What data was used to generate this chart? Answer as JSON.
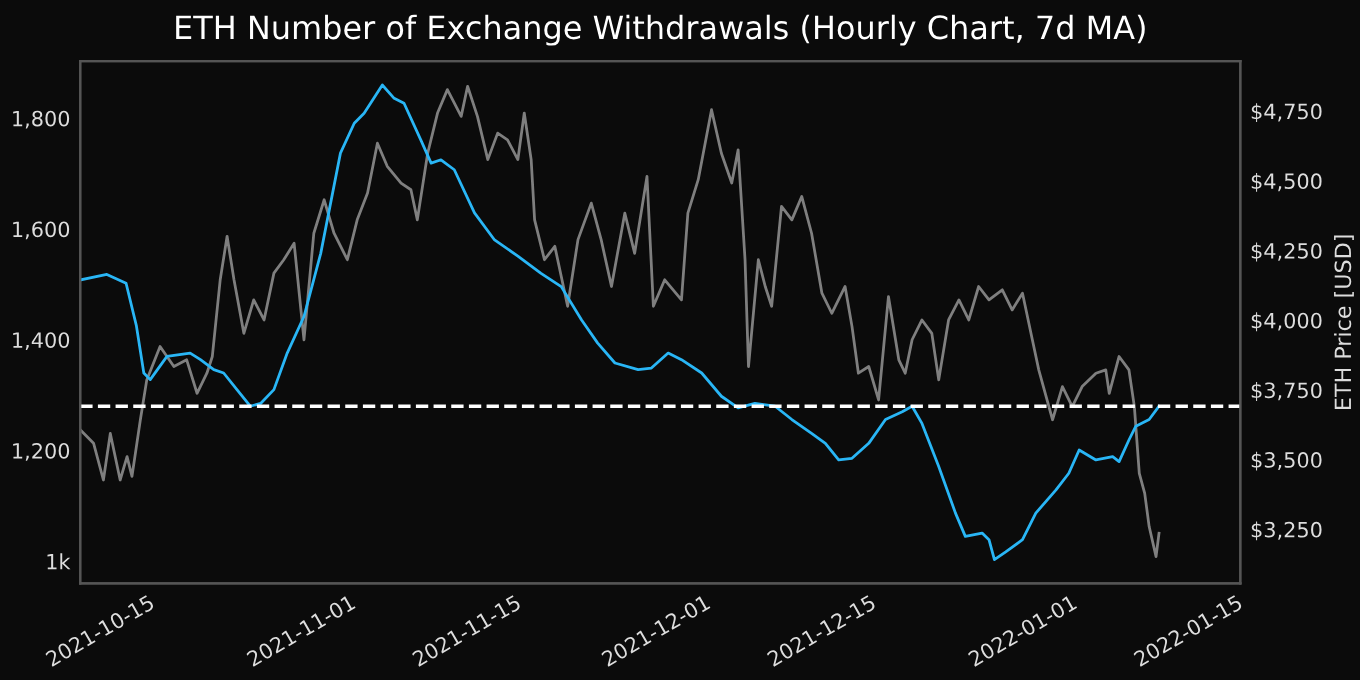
{
  "chart_data": {
    "type": "line",
    "title": "ETH Number of Exchange Withdrawals (Hourly Chart, 7d MA)",
    "y2label": "ETH Price [USD]",
    "xlim": [
      "2021-10-09T06:00",
      "2022-01-15T08:00"
    ],
    "xticks": [
      "2021-10-15",
      "2021-11-01",
      "2021-11-15",
      "2021-12-01",
      "2021-12-15",
      "2022-01-01",
      "2022-01-15"
    ],
    "ylim": [
      960,
      1903
    ],
    "yticks": [
      {
        "value": 1000,
        "label": "1k"
      },
      {
        "value": 1200,
        "label": "1,200"
      },
      {
        "value": 1400,
        "label": "1,400"
      },
      {
        "value": 1600,
        "label": "1,600"
      },
      {
        "value": 1800,
        "label": "1,800"
      }
    ],
    "y2lim": [
      3056,
      4929
    ],
    "y2ticks": [
      {
        "value": 3250,
        "label": "$3,250"
      },
      {
        "value": 3500,
        "label": "$3,500"
      },
      {
        "value": 3750,
        "label": "$3,750"
      },
      {
        "value": 4000,
        "label": "$4,000"
      },
      {
        "value": 4250,
        "label": "$4,250"
      },
      {
        "value": 4500,
        "label": "$4,500"
      },
      {
        "value": 4750,
        "label": "$4,750"
      }
    ],
    "grid": false,
    "legend": false,
    "marker": "none",
    "line_style": "solid",
    "ref_lines": [
      {
        "axis": "y",
        "value": 1280,
        "color": "#ffffff",
        "line_style": "dashed"
      }
    ],
    "series": [
      {
        "color": "#7f7f7f",
        "axis": "y2",
        "x": [
          "2021-10-09T06:00",
          "2021-10-10T09:00",
          "2021-10-11T05:00",
          "2021-10-11T19:00",
          "2021-10-12T15:00",
          "2021-10-13T05:00",
          "2021-10-13T15:00",
          "2021-10-14T08:00",
          "2021-10-14T21:00",
          "2021-10-16T00:00",
          "2021-10-17T04:00",
          "2021-10-18T06:00",
          "2021-10-19T03:00",
          "2021-10-19T23:00",
          "2021-10-20T10:00",
          "2021-10-21T02:00",
          "2021-10-21T16:00",
          "2021-10-22T06:00",
          "2021-10-23T02:00",
          "2021-10-23T22:00",
          "2021-10-24T19:00",
          "2021-10-25T15:00",
          "2021-10-26T11:00",
          "2021-10-27T08:00",
          "2021-10-28T04:00",
          "2021-10-29T00:00",
          "2021-10-29T21:00",
          "2021-10-30T17:00",
          "2021-10-31T20:00",
          "2021-11-01T16:00",
          "2021-11-02T13:00",
          "2021-11-03T09:00",
          "2021-11-04T05:00",
          "2021-11-05T09:00",
          "2021-11-06T05:00",
          "2021-11-06T18:00",
          "2021-11-07T15:00",
          "2021-11-08T11:00",
          "2021-11-09T07:00",
          "2021-11-10T11:00",
          "2021-11-11T00:00",
          "2021-11-11T20:00",
          "2021-11-12T17:00",
          "2021-11-13T13:00",
          "2021-11-14T09:00",
          "2021-11-15T06:00",
          "2021-11-15T19:00",
          "2021-11-16T09:00",
          "2021-11-16T16:00",
          "2021-11-17T12:00",
          "2021-11-18T09:00",
          "2021-11-19T11:00",
          "2021-11-20T08:00",
          "2021-11-21T11:00",
          "2021-11-22T07:00",
          "2021-11-23T04:00",
          "2021-11-24T07:00",
          "2021-11-25T03:00",
          "2021-11-26T04:00",
          "2021-11-26T17:00",
          "2021-11-27T16:00",
          "2021-11-29T02:00",
          "2021-11-29T15:00",
          "2021-11-30T12:00",
          "2021-12-01T15:00",
          "2021-12-02T11:00",
          "2021-12-03T08:00",
          "2021-12-03T21:00",
          "2021-12-04T11:00",
          "2021-12-04T18:00",
          "2021-12-05T14:00",
          "2021-12-06T04:00",
          "2021-12-06T17:00",
          "2021-12-07T13:00",
          "2021-12-08T10:00",
          "2021-12-09T06:00",
          "2021-12-10T02:00",
          "2021-12-10T23:00",
          "2021-12-11T19:00",
          "2021-12-12T22:00",
          "2021-12-13T12:00",
          "2021-12-14T01:00",
          "2021-12-14T22:00",
          "2021-12-15T18:00",
          "2021-12-16T14:00",
          "2021-12-17T11:00",
          "2021-12-18T00:00",
          "2021-12-18T14:00",
          "2021-12-19T10:00",
          "2021-12-20T06:00",
          "2021-12-20T20:00",
          "2021-12-21T16:00",
          "2021-12-22T13:00",
          "2021-12-23T09:00",
          "2021-12-24T05:00",
          "2021-12-25T02:00",
          "2021-12-26T05:00",
          "2021-12-27T01:00",
          "2021-12-27T22:00",
          "2021-12-28T18:00",
          "2021-12-29T07:00",
          "2021-12-30T11:00",
          "2021-12-31T07:00",
          "2022-01-01T03:00",
          "2022-01-01T23:00",
          "2022-01-03T03:00",
          "2022-01-03T23:00",
          "2022-01-04T06:00",
          "2022-01-05T02:00",
          "2022-01-05T22:00",
          "2022-01-06T09:00",
          "2022-01-06T19:00",
          "2022-01-07T06:00",
          "2022-01-07T15:00",
          "2022-01-08T05:00",
          "2022-01-08T11:00"
        ],
        "values": [
          3607,
          3559,
          3427,
          3594,
          3427,
          3511,
          3440,
          3643,
          3786,
          3906,
          3834,
          3858,
          3738,
          3810,
          3870,
          4145,
          4301,
          4145,
          3953,
          4073,
          4001,
          4169,
          4217,
          4276,
          3930,
          4312,
          4432,
          4312,
          4217,
          4360,
          4456,
          4635,
          4552,
          4492,
          4468,
          4360,
          4599,
          4743,
          4827,
          4731,
          4839,
          4731,
          4576,
          4671,
          4647,
          4576,
          4743,
          4576,
          4360,
          4217,
          4265,
          4050,
          4289,
          4420,
          4289,
          4121,
          4384,
          4240,
          4516,
          4050,
          4145,
          4073,
          4384,
          4504,
          4755,
          4599,
          4492,
          4611,
          4217,
          3834,
          4217,
          4121,
          4050,
          4408,
          4360,
          4444,
          4312,
          4097,
          4025,
          4121,
          3978,
          3810,
          3834,
          3714,
          4085,
          3858,
          3810,
          3930,
          4001,
          3953,
          3786,
          4001,
          4073,
          4001,
          4121,
          4073,
          4109,
          4037,
          4097,
          3930,
          3822,
          3643,
          3762,
          3690,
          3762,
          3810,
          3822,
          3738,
          3870,
          3822,
          3690,
          3451,
          3379,
          3260,
          3152,
          3236
        ]
      },
      {
        "color": "#29b6f6",
        "axis": "y",
        "x": [
          "2021-10-09T06:00",
          "2021-10-11T12:00",
          "2021-10-13T03:00",
          "2021-10-14T00:00",
          "2021-10-14T15:00",
          "2021-10-15T04:00",
          "2021-10-16T14:00",
          "2021-10-18T13:00",
          "2021-10-19T10:00",
          "2021-10-20T13:00",
          "2021-10-21T09:00",
          "2021-10-22T12:00",
          "2021-10-23T15:00",
          "2021-10-24T12:00",
          "2021-10-25T15:00",
          "2021-10-26T18:00",
          "2021-10-28T04:00",
          "2021-10-29T14:00",
          "2021-10-31T06:00",
          "2021-11-01T10:00",
          "2021-11-02T06:00",
          "2021-11-03T19:00",
          "2021-11-04T19:00",
          "2021-11-05T15:00",
          "2021-11-07T01:00",
          "2021-11-07T22:00",
          "2021-11-08T18:00",
          "2021-11-09T21:00",
          "2021-11-11T14:00",
          "2021-11-13T06:00",
          "2021-11-15T06:00",
          "2021-11-17T05:00",
          "2021-11-18T22:00",
          "2021-11-20T15:00",
          "2021-11-22T00:00",
          "2021-11-23T11:00",
          "2021-11-25T10:00",
          "2021-11-26T13:00",
          "2021-11-27T23:00",
          "2021-11-29T02:00",
          "2021-11-30T19:00",
          "2021-12-02T11:00",
          "2021-12-03T21:00",
          "2021-12-05T07:00",
          "2021-12-07T00:00",
          "2021-12-08T10:00",
          "2021-12-10T02:00",
          "2021-12-11T06:00",
          "2021-12-12T09:00",
          "2021-12-13T12:00",
          "2021-12-14T22:00",
          "2021-12-16T08:00",
          "2021-12-17T18:00",
          "2021-12-18T14:00",
          "2021-12-19T10:00",
          "2021-12-20T20:00",
          "2021-12-22T06:00",
          "2021-12-23T02:00",
          "2021-12-24T12:00",
          "2021-12-25T02:00",
          "2021-12-25T13:00",
          "2021-12-26T12:00",
          "2021-12-27T22:00",
          "2021-12-29T01:00",
          "2021-12-30T18:00",
          "2021-12-31T20:00",
          "2022-01-01T17:00",
          "2022-01-03T03:00",
          "2022-01-04T13:00",
          "2022-01-05T02:00",
          "2022-01-05T22:00",
          "2022-01-06T12:00",
          "2022-01-07T15:00",
          "2022-01-08T11:00"
        ],
        "values": [
          1508,
          1518,
          1502,
          1425,
          1340,
          1328,
          1370,
          1376,
          1364,
          1346,
          1340,
          1310,
          1280,
          1285,
          1310,
          1376,
          1442,
          1556,
          1737,
          1791,
          1809,
          1860,
          1836,
          1827,
          1761,
          1719,
          1725,
          1707,
          1629,
          1581,
          1551,
          1520,
          1496,
          1436,
          1394,
          1358,
          1346,
          1349,
          1376,
          1364,
          1340,
          1298,
          1277,
          1285,
          1280,
          1256,
          1231,
          1213,
          1183,
          1186,
          1213,
          1256,
          1270,
          1280,
          1249,
          1171,
          1087,
          1045,
          1051,
          1039,
          1003,
          1017,
          1039,
          1087,
          1129,
          1159,
          1201,
          1183,
          1189,
          1180,
          1219,
          1244,
          1256,
          1280
        ]
      }
    ]
  }
}
